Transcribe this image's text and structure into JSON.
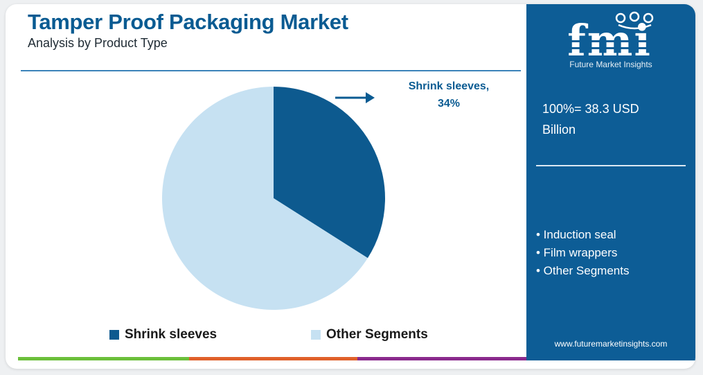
{
  "header": {
    "title": "Tamper Proof Packaging Market",
    "subtitle": "Analysis by Product Type"
  },
  "callout": {
    "line1": "Shrink sleeves,",
    "line2": "34%"
  },
  "chart_data": {
    "type": "pie",
    "title": "Tamper Proof Packaging Market",
    "subtitle": "Analysis by Product Type",
    "slices": [
      {
        "name": "Shrink sleeves",
        "value": 34,
        "color": "#0d5a8f"
      },
      {
        "name": "Other Segments",
        "value": 66,
        "color": "#c6e1f2"
      }
    ],
    "legend_position": "bottom"
  },
  "legend": [
    {
      "label": "Shrink sleeves",
      "color": "#0d5a8f"
    },
    {
      "label": "Other Segments",
      "color": "#c6e1f2"
    }
  ],
  "side_panel": {
    "logo_text": "fmi",
    "logo_tagline": "Future Market Insights",
    "total_line1": "100%= 38.3 USD",
    "total_line2": "Billion",
    "other_segments": [
      "• Induction seal",
      "• Film wrappers",
      "• Other Segments"
    ],
    "website": "www.futuremarketinsights.com"
  },
  "colors": {
    "brand_blue": "#0d5d96",
    "title_blue": "#0a5b92",
    "bar_green": "#6bbf3a",
    "bar_orange": "#e0602a",
    "bar_purple": "#8a2a8c"
  }
}
